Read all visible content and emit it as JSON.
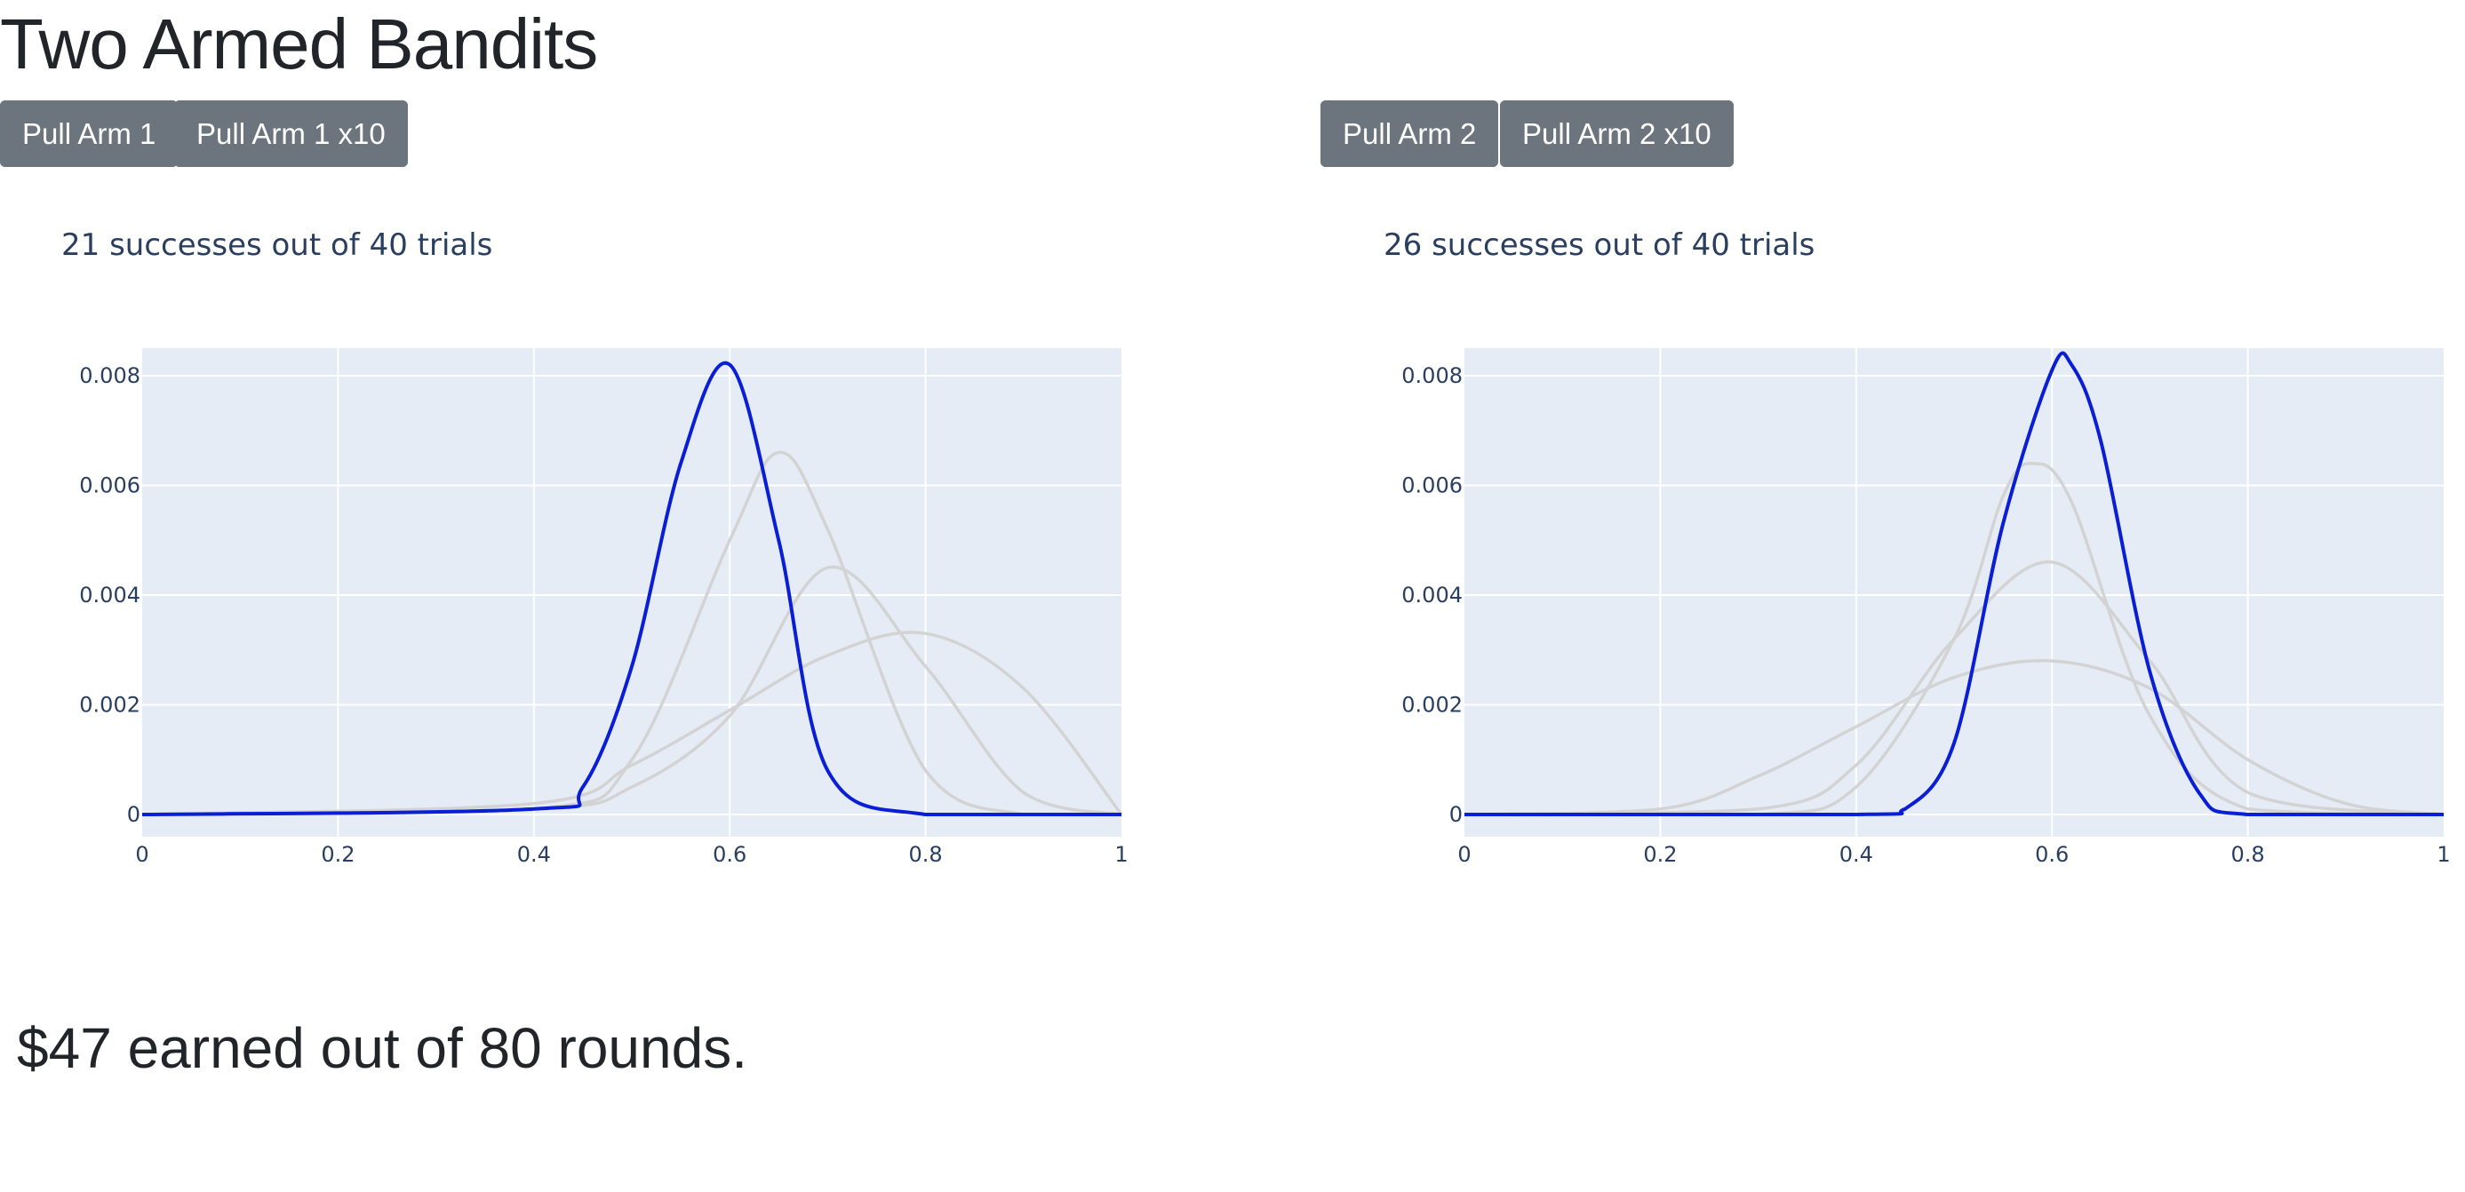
{
  "page": {
    "title": "Two Armed Bandits"
  },
  "arm1": {
    "pull_label": "Pull Arm 1",
    "pull10_label": "Pull Arm 1 x10",
    "summary": "21 successes out of 40 trials"
  },
  "arm2": {
    "pull_label": "Pull Arm 2",
    "pull10_label": "Pull Arm 2 x10",
    "summary": "26 successes out of 40 trials"
  },
  "footer": {
    "earned_text": "$47 earned out of 80 rounds."
  },
  "colors": {
    "plot_bg": "#e5ecf6",
    "grid": "#ffffff",
    "current_curve": "#0a1ed6",
    "past_curve": "#d3d3d3",
    "button_bg": "#6c757d"
  },
  "chart_data": [
    {
      "type": "line",
      "title": "21 successes out of 40 trials",
      "xlim": [
        0,
        1
      ],
      "ylim": [
        0,
        0.0085
      ],
      "xticks": [
        0,
        0.2,
        0.4,
        0.6,
        0.8,
        1
      ],
      "xtick_labels": [
        "0",
        "0.2",
        "0.4",
        "0.6",
        "0.8",
        "1"
      ],
      "yticks": [
        0,
        0.002,
        0.004,
        0.006,
        0.008
      ],
      "ytick_labels": [
        "0",
        "0.002",
        "0.004",
        "0.006",
        "0.008"
      ],
      "grid": true,
      "series": [
        {
          "kind": "past",
          "x": [
            0,
            0.4,
            0.5,
            0.6,
            0.7,
            0.8,
            0.9,
            1
          ],
          "y": [
            0,
            0.0002,
            0.0009,
            0.0019,
            0.0029,
            0.0033,
            0.0023,
            0
          ]
        },
        {
          "kind": "past",
          "x": [
            0,
            0.4,
            0.5,
            0.6,
            0.7,
            0.8,
            0.9,
            1
          ],
          "y": [
            0,
            0.0001,
            0.0005,
            0.0018,
            0.0045,
            0.0027,
            0.0004,
            0
          ]
        },
        {
          "kind": "past",
          "x": [
            0,
            0.4,
            0.5,
            0.6,
            0.65,
            0.7,
            0.8,
            0.9,
            1
          ],
          "y": [
            0,
            0.0001,
            0.001,
            0.005,
            0.0066,
            0.0052,
            0.0008,
            0,
            0
          ]
        },
        {
          "kind": "current",
          "x": [
            0,
            0.4,
            0.45,
            0.5,
            0.55,
            0.6,
            0.65,
            0.7,
            0.8,
            1
          ],
          "y": [
            0,
            0.0001,
            0.0005,
            0.0027,
            0.0064,
            0.0082,
            0.005,
            0.0008,
            0,
            0
          ]
        }
      ]
    },
    {
      "type": "line",
      "title": "26 successes out of 40 trials",
      "xlim": [
        0,
        1
      ],
      "ylim": [
        0,
        0.0085
      ],
      "xticks": [
        0,
        0.2,
        0.4,
        0.6,
        0.8,
        1
      ],
      "xtick_labels": [
        "0",
        "0.2",
        "0.4",
        "0.6",
        "0.8",
        "1"
      ],
      "yticks": [
        0,
        0.002,
        0.004,
        0.006,
        0.008
      ],
      "ytick_labels": [
        "0",
        "0.002",
        "0.004",
        "0.006",
        "0.008"
      ],
      "grid": true,
      "series": [
        {
          "kind": "past",
          "x": [
            0,
            0.2,
            0.3,
            0.4,
            0.5,
            0.6,
            0.7,
            0.8,
            0.9,
            1
          ],
          "y": [
            0,
            0.0001,
            0.0007,
            0.0016,
            0.0025,
            0.0028,
            0.0023,
            0.001,
            0.0002,
            0
          ]
        },
        {
          "kind": "past",
          "x": [
            0,
            0.3,
            0.4,
            0.5,
            0.6,
            0.7,
            0.8,
            1
          ],
          "y": [
            0,
            0.0001,
            0.0009,
            0.0032,
            0.0046,
            0.0028,
            0.0004,
            0
          ]
        },
        {
          "kind": "past",
          "x": [
            0,
            0.3,
            0.4,
            0.5,
            0.55,
            0.58,
            0.62,
            0.7,
            0.8,
            1
          ],
          "y": [
            0,
            0,
            0.0005,
            0.0032,
            0.0058,
            0.0064,
            0.0057,
            0.0018,
            0.0001,
            0
          ]
        },
        {
          "kind": "current",
          "x": [
            0,
            0.4,
            0.45,
            0.5,
            0.55,
            0.6,
            0.62,
            0.65,
            0.7,
            0.75,
            0.8,
            1
          ],
          "y": [
            0,
            0,
            0.0001,
            0.0013,
            0.0053,
            0.0081,
            0.0082,
            0.0068,
            0.0026,
            0.0004,
            0,
            0
          ]
        }
      ]
    }
  ]
}
